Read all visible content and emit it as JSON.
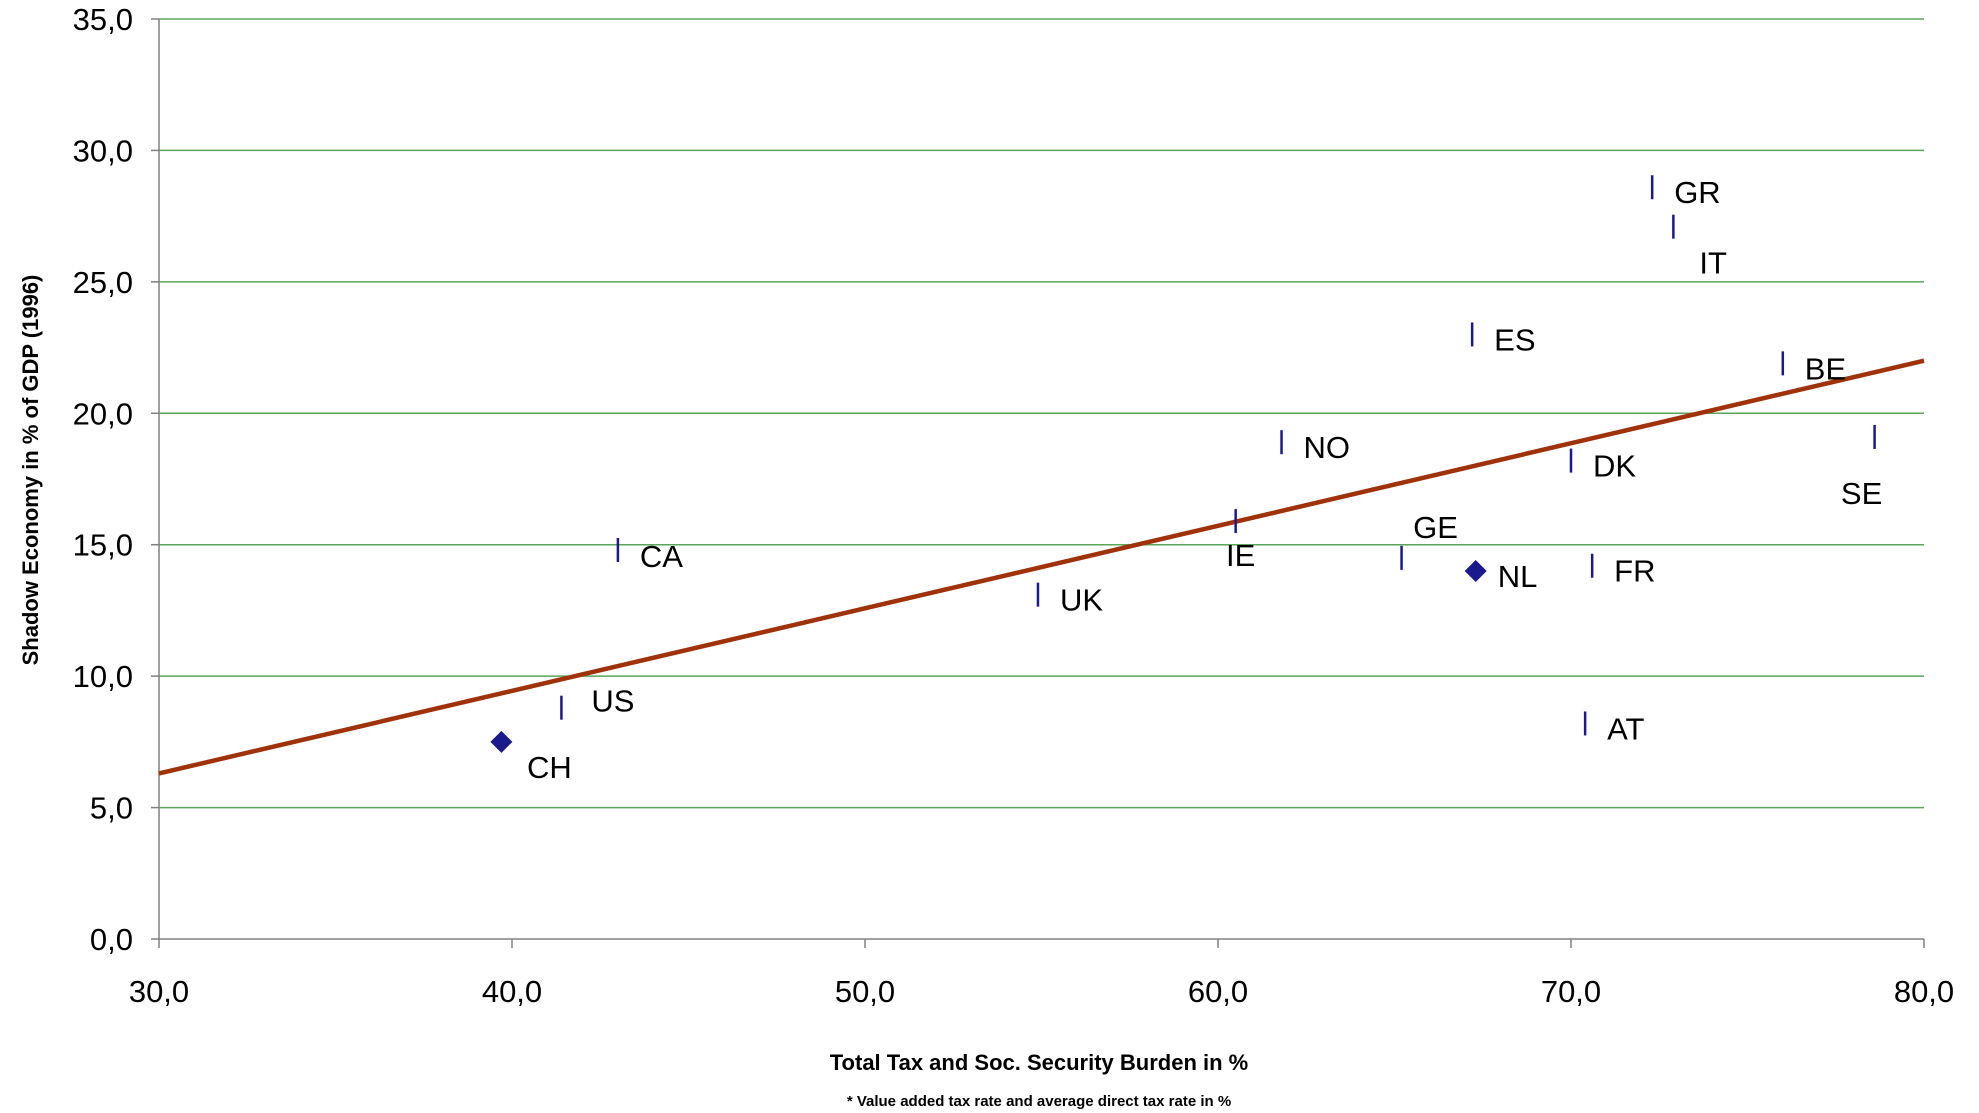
{
  "chart_data": {
    "type": "scatter",
    "title": "",
    "xlabel": "Total Tax and Soc. Security Burden in %",
    "ylabel": "Shadow Economy in % of GDP (1996)",
    "footnote": "* Value added tax rate and average direct tax rate in %",
    "xlim": [
      30,
      80
    ],
    "ylim": [
      0,
      35
    ],
    "xticks": [
      "30,0",
      "40,0",
      "50,0",
      "60,0",
      "70,0",
      "80,0"
    ],
    "yticks": [
      "0,0",
      "5,0",
      "10,0",
      "15,0",
      "20,0",
      "25,0",
      "30,0",
      "35,0"
    ],
    "grid": "horizontal",
    "colors": {
      "points": "#1a1a8c",
      "trendline": "#a0320a",
      "grid": "#5aa55a",
      "axis": "#808080"
    },
    "points": [
      {
        "label": "CH",
        "x": 39.7,
        "y": 7.5,
        "marker": "diamond"
      },
      {
        "label": "US",
        "x": 41.4,
        "y": 8.8,
        "marker": "dash"
      },
      {
        "label": "CA",
        "x": 43.0,
        "y": 14.8,
        "marker": "dash"
      },
      {
        "label": "UK",
        "x": 54.9,
        "y": 13.1,
        "marker": "dash"
      },
      {
        "label": "IE",
        "x": 60.5,
        "y": 15.9,
        "marker": "dash"
      },
      {
        "label": "NO",
        "x": 61.8,
        "y": 18.9,
        "marker": "dash"
      },
      {
        "label": "GE",
        "x": 65.2,
        "y": 14.5,
        "marker": "dash"
      },
      {
        "label": "ES",
        "x": 67.2,
        "y": 23.0,
        "marker": "dash"
      },
      {
        "label": "NL",
        "x": 67.3,
        "y": 14.0,
        "marker": "diamond"
      },
      {
        "label": "DK",
        "x": 70.0,
        "y": 18.2,
        "marker": "dash"
      },
      {
        "label": "AT",
        "x": 70.4,
        "y": 8.2,
        "marker": "dash"
      },
      {
        "label": "FR",
        "x": 70.6,
        "y": 14.2,
        "marker": "dash"
      },
      {
        "label": "GR",
        "x": 72.3,
        "y": 28.6,
        "marker": "dash"
      },
      {
        "label": "IT",
        "x": 72.9,
        "y": 27.1,
        "marker": "dash"
      },
      {
        "label": "BE",
        "x": 76.0,
        "y": 21.9,
        "marker": "dash"
      },
      {
        "label": "SE",
        "x": 78.6,
        "y": 19.1,
        "marker": "dash"
      }
    ],
    "trendline": {
      "x": [
        30,
        80
      ],
      "y": [
        6.3,
        22.0
      ]
    }
  }
}
